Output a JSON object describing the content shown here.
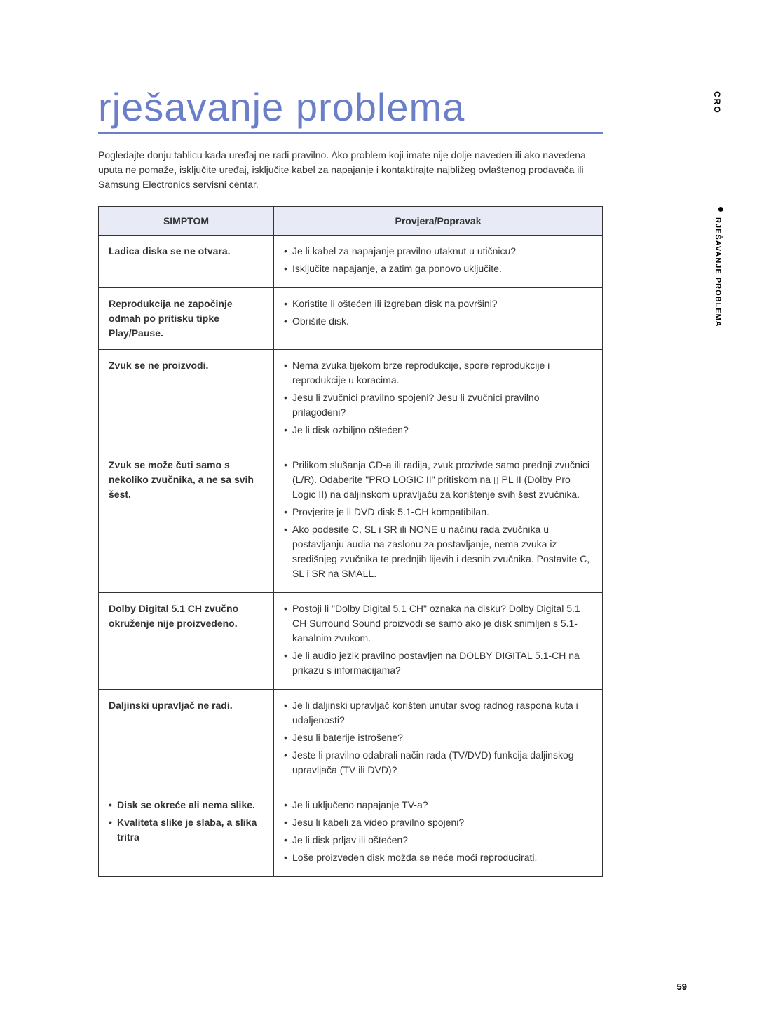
{
  "page": {
    "title": "rješavanje problema",
    "intro": "Pogledajte donju tablicu kada uređaj ne radi pravilno. Ako problem koji imate nije dolje naveden ili ako navedena uputa ne pomaže, isključite uređaj, isključite kabel za napajanje i kontaktirajte najbližeg ovlaštenog prodavača ili Samsung Electronics servisni centar.",
    "page_number": "59"
  },
  "side": {
    "language": "CRO",
    "section": "RJEŠAVANJE PROBLEMA"
  },
  "table": {
    "headers": {
      "symptom": "SIMPTOM",
      "check": "Provjera/Popravak"
    },
    "rows": [
      {
        "symptom": "Ladica diska se ne otvara.",
        "checks": [
          "Je li kabel za napajanje pravilno utaknut u utičnicu?",
          "Isključite napajanje, a zatim ga ponovo uključite."
        ]
      },
      {
        "symptom": "Reprodukcija ne započinje odmah po pritisku tipke Play/Pause.",
        "checks": [
          "Koristite li oštećen ili izgreban disk na površini?",
          "Obrišite disk."
        ]
      },
      {
        "symptom": "Zvuk se ne proizvodi.",
        "checks": [
          "Nema zvuka tijekom brze reprodukcije, spore reprodukcije i reprodukcije u koracima.",
          "Jesu li zvučnici pravilno spojeni? Jesu li zvučnici pravilno prilagođeni?",
          "Je li disk ozbiljno oštećen?"
        ]
      },
      {
        "symptom": "Zvuk se može čuti samo s nekoliko zvučnika, a ne sa svih šest.",
        "checks": [
          "Prilikom slušanja CD-a ili radija, zvuk prozivde samo prednji zvučnici (L/R). Odaberite \"PRO LOGIC II\" pritiskom na ▯ PL II (Dolby Pro Logic II) na daljinskom upravljaču za korištenje svih šest zvučnika.",
          "Provjerite je li DVD disk 5.1-CH kompatibilan.",
          "Ako podesite C, SL i SR ili NONE u načinu rada zvučnika u postavljanju audia na zaslonu za postavljanje, nema zvuka iz središnjeg zvučnika te prednjih lijevih i desnih zvučnika. Postavite C, SL i SR na SMALL."
        ]
      },
      {
        "symptom": "Dolby Digital 5.1 CH zvučno okruženje nije proizvedeno.",
        "checks": [
          "Postoji li \"Dolby Digital 5.1 CH\" oznaka na disku? Dolby Digital 5.1 CH Surround Sound proizvodi se samo ako je disk snimljen s 5.1-kanalnim zvukom.",
          "Je li audio jezik pravilno postavljen na DOLBY DIGITAL 5.1-CH na prikazu s informacijama?"
        ]
      },
      {
        "symptom": "Daljinski upravljač ne radi.",
        "checks": [
          "Je li daljinski upravljač korišten unutar svog radnog raspona kuta i udaljenosti?",
          "Jesu li baterije istrošene?",
          "Jeste li pravilno odabrali način rada (TV/DVD) funkcija daljinskog upravljača (TV ili DVD)?"
        ]
      },
      {
        "symptom_list": [
          "Disk se okreće ali nema slike.",
          "Kvaliteta slike je slaba, a slika tritra"
        ],
        "checks": [
          "Je li uključeno napajanje TV-a?",
          "Jesu li kabeli za video pravilno spojeni?",
          "Je li disk prljav ili oštećen?",
          "Loše proizveden disk možda se neće moći reproducirati."
        ]
      }
    ]
  }
}
